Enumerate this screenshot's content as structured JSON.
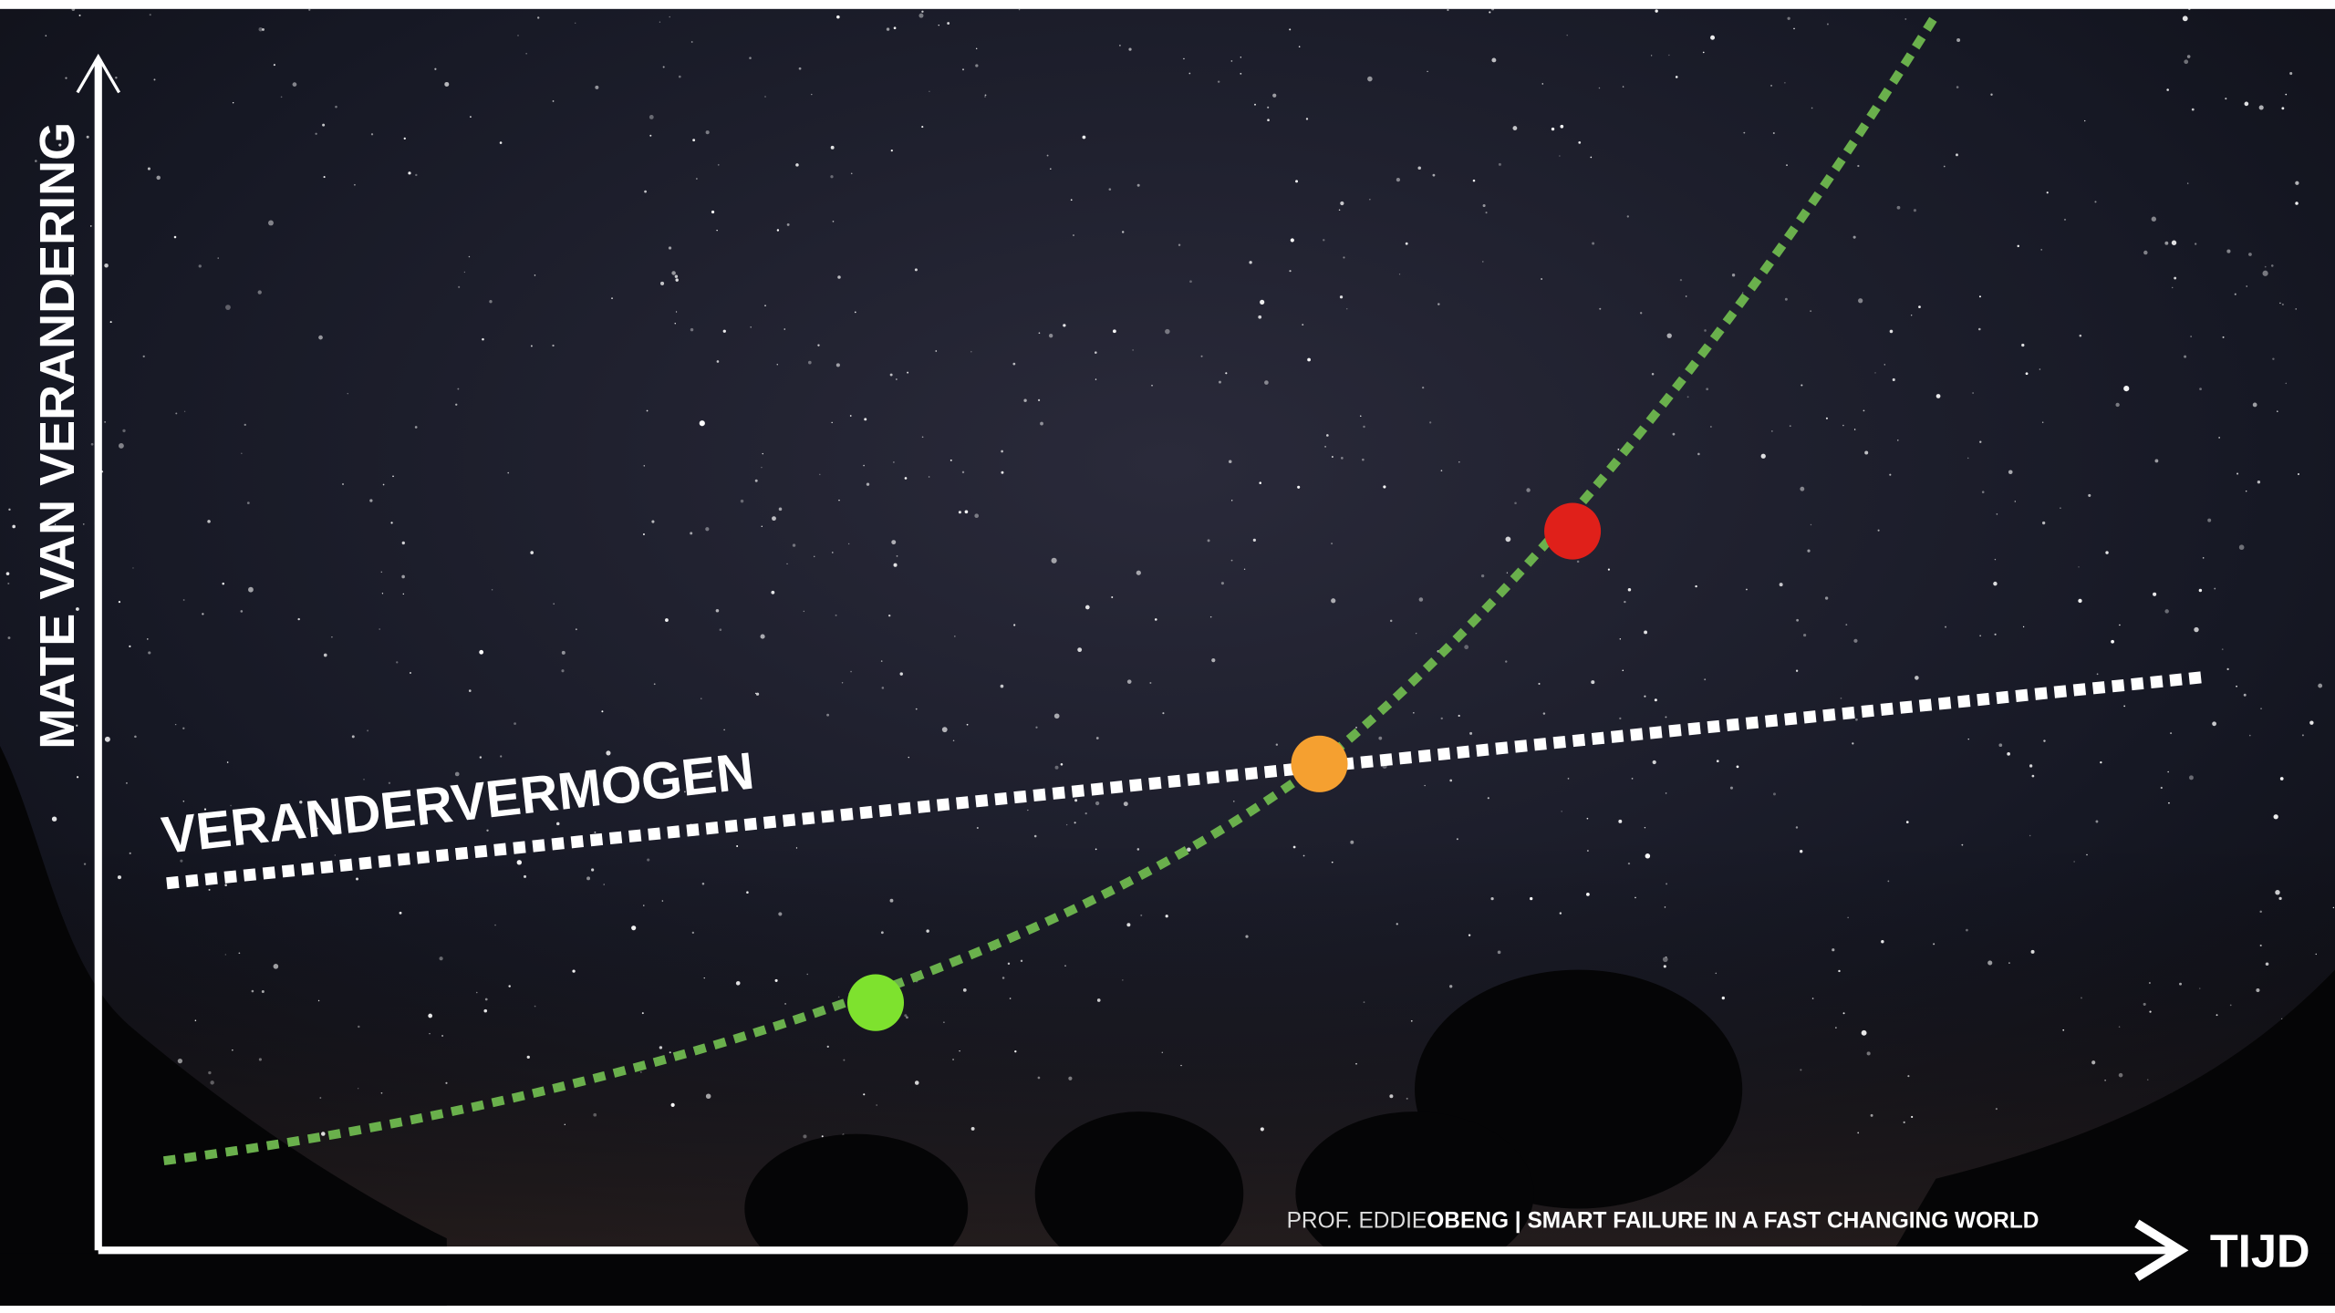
{
  "axes": {
    "y_label": "MATE VAN VERANDERING",
    "x_label": "TIJD"
  },
  "capability_label": "VERANDERVERMOGEN",
  "credit": {
    "light": "PROF. EDDIE",
    "bold": "OBENG | SMART FAILURE IN A FAST CHANGING WORLD"
  }
}
